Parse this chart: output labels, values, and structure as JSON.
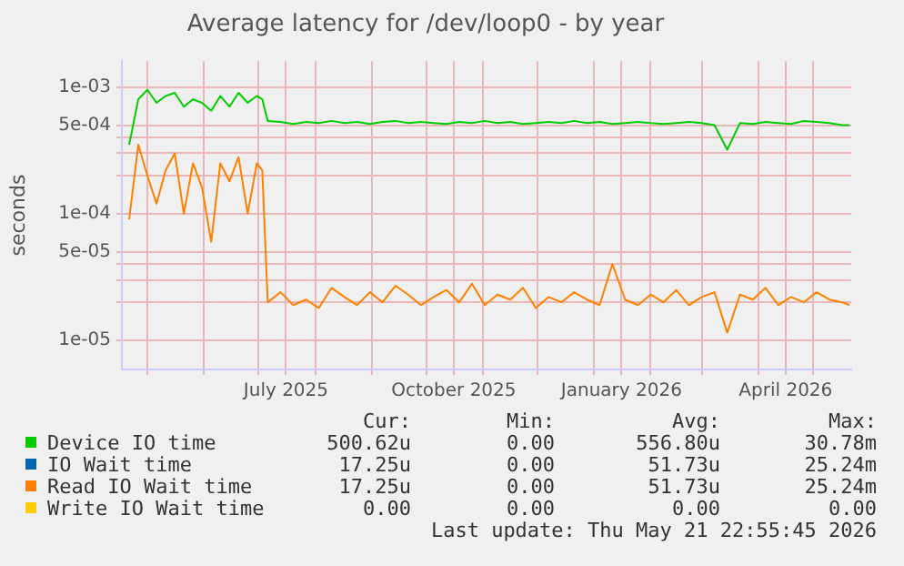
{
  "chart_data": {
    "type": "line",
    "title": "Average latency for /dev/loop0 - by year",
    "ylabel": "seconds",
    "x": [
      "2025-04-21",
      "2025-04-26",
      "2025-05-01",
      "2025-05-06",
      "2025-05-11",
      "2025-05-16",
      "2025-05-21",
      "2025-05-26",
      "2025-05-31",
      "2025-06-05",
      "2025-06-10",
      "2025-06-15",
      "2025-06-20",
      "2025-06-25",
      "2025-06-30",
      "2025-07-03",
      "2025-07-06",
      "2025-07-13",
      "2025-07-20",
      "2025-07-27",
      "2025-08-03",
      "2025-08-10",
      "2025-08-17",
      "2025-08-24",
      "2025-08-31",
      "2025-09-07",
      "2025-09-14",
      "2025-09-21",
      "2025-09-28",
      "2025-10-05",
      "2025-10-12",
      "2025-10-19",
      "2025-10-26",
      "2025-11-02",
      "2025-11-09",
      "2025-11-16",
      "2025-11-23",
      "2025-11-30",
      "2025-12-07",
      "2025-12-14",
      "2025-12-21",
      "2025-12-28",
      "2026-01-04",
      "2026-01-11",
      "2026-01-18",
      "2026-01-25",
      "2026-02-01",
      "2026-02-08",
      "2026-02-15",
      "2026-02-22",
      "2026-03-01",
      "2026-03-08",
      "2026-03-15",
      "2026-03-22",
      "2026-03-29",
      "2026-04-05",
      "2026-04-12",
      "2026-04-19",
      "2026-04-26",
      "2026-05-03",
      "2026-05-10",
      "2026-05-17",
      "2026-05-21"
    ],
    "series": [
      {
        "name": "Device IO time",
        "color": "#00cc00",
        "values": [
          0.00035,
          0.0008,
          0.00095,
          0.00075,
          0.00085,
          0.0009,
          0.0007,
          0.0008,
          0.00075,
          0.00065,
          0.00085,
          0.0007,
          0.0009,
          0.00075,
          0.00085,
          0.0008,
          0.00054,
          0.00053,
          0.00051,
          0.00053,
          0.00052,
          0.00054,
          0.00052,
          0.00053,
          0.00051,
          0.00053,
          0.00054,
          0.00052,
          0.00053,
          0.00052,
          0.00051,
          0.00053,
          0.00052,
          0.00054,
          0.00052,
          0.00053,
          0.00051,
          0.00052,
          0.00053,
          0.00052,
          0.00054,
          0.00052,
          0.00053,
          0.00051,
          0.00052,
          0.00053,
          0.00052,
          0.00051,
          0.00052,
          0.00053,
          0.00052,
          0.0005,
          0.00032,
          0.00052,
          0.00051,
          0.00053,
          0.00052,
          0.00051,
          0.00054,
          0.00053,
          0.00052,
          0.0005,
          0.0005
        ]
      },
      {
        "name": "IO Wait time",
        "color": "#0066b3",
        "values": [
          null,
          null,
          null,
          null,
          null,
          null,
          null,
          null,
          null,
          null,
          null,
          null,
          null,
          null,
          null,
          null,
          null,
          null,
          null,
          null,
          null,
          null,
          null,
          null,
          null,
          null,
          null,
          null,
          null,
          null,
          null,
          null,
          null,
          null,
          null,
          null,
          null,
          null,
          null,
          null,
          null,
          null,
          null,
          null,
          null,
          null,
          null,
          null,
          null,
          null,
          null,
          null,
          null,
          null,
          null,
          null,
          null,
          null,
          null,
          null,
          null,
          null,
          null
        ]
      },
      {
        "name": "Read IO Wait time",
        "color": "#ff8000",
        "values": [
          9e-05,
          0.00035,
          0.0002,
          0.00012,
          0.00022,
          0.0003,
          0.0001,
          0.00025,
          0.00016,
          6e-05,
          0.00025,
          0.00018,
          0.00028,
          0.0001,
          0.00025,
          0.00022,
          2e-05,
          2.4e-05,
          1.9e-05,
          2.1e-05,
          1.8e-05,
          2.6e-05,
          2.2e-05,
          1.9e-05,
          2.4e-05,
          2e-05,
          2.7e-05,
          2.3e-05,
          1.9e-05,
          2.2e-05,
          2.5e-05,
          2e-05,
          2.8e-05,
          1.9e-05,
          2.3e-05,
          2.1e-05,
          2.6e-05,
          1.8e-05,
          2.2e-05,
          2e-05,
          2.4e-05,
          2.1e-05,
          1.9e-05,
          4e-05,
          2.1e-05,
          1.9e-05,
          2.3e-05,
          2e-05,
          2.5e-05,
          1.9e-05,
          2.2e-05,
          2.4e-05,
          1.15e-05,
          2.3e-05,
          2.1e-05,
          2.6e-05,
          1.9e-05,
          2.2e-05,
          2e-05,
          2.4e-05,
          2.1e-05,
          2e-05,
          1.9e-05
        ]
      },
      {
        "name": "Write IO Wait time",
        "color": "#ffcc00",
        "values": [
          null,
          null,
          null,
          null,
          null,
          null,
          null,
          null,
          null,
          null,
          null,
          null,
          null,
          null,
          null,
          null,
          null,
          null,
          null,
          null,
          null,
          null,
          null,
          null,
          null,
          null,
          null,
          null,
          null,
          null,
          null,
          null,
          null,
          null,
          null,
          null,
          null,
          null,
          null,
          null,
          null,
          null,
          null,
          null,
          null,
          null,
          null,
          null,
          null,
          null,
          null,
          null,
          null,
          null,
          null,
          null,
          null,
          null,
          null,
          null,
          null,
          null,
          null
        ]
      }
    ],
    "log": "y",
    "ylim": [
      5.9e-06,
      0.0016
    ],
    "yticks": [
      {
        "value": 1e-05,
        "label": "1e-05"
      },
      {
        "value": 2e-05,
        "label": null
      },
      {
        "value": 3e-05,
        "label": null
      },
      {
        "value": 4e-05,
        "label": null
      },
      {
        "value": 5e-05,
        "label": "5e-05"
      },
      {
        "value": 0.0001,
        "label": "1e-04"
      },
      {
        "value": 0.0002,
        "label": null
      },
      {
        "value": 0.0003,
        "label": null
      },
      {
        "value": 0.0004,
        "label": null
      },
      {
        "value": 0.0005,
        "label": "5e-04"
      },
      {
        "value": 0.001,
        "label": "1e-03"
      }
    ],
    "xlim": [
      "2025-04-17",
      "2026-05-22"
    ],
    "xticks": [
      {
        "value": "2025-05-01",
        "label": null
      },
      {
        "value": "2025-06-01",
        "label": null
      },
      {
        "value": "2025-07-01",
        "label": null
      },
      {
        "value": "2025-07-16",
        "label": "July 2025"
      },
      {
        "value": "2025-08-01",
        "label": null
      },
      {
        "value": "2025-09-01",
        "label": null
      },
      {
        "value": "2025-10-01",
        "label": null
      },
      {
        "value": "2025-10-16",
        "label": "October 2025"
      },
      {
        "value": "2025-11-01",
        "label": null
      },
      {
        "value": "2025-12-01",
        "label": null
      },
      {
        "value": "2026-01-01",
        "label": null
      },
      {
        "value": "2026-01-16",
        "label": "January 2026"
      },
      {
        "value": "2026-02-01",
        "label": null
      },
      {
        "value": "2026-03-01",
        "label": null
      },
      {
        "value": "2026-04-01",
        "label": null
      },
      {
        "value": "2026-04-16",
        "label": "April 2026"
      },
      {
        "value": "2026-05-01",
        "label": null
      }
    ],
    "grid": true,
    "legend": "bottom",
    "marker": "none",
    "line_style": "solid",
    "annotations": [
      "Cur:",
      "Min:",
      "Avg:",
      "Max:",
      "500.62u",
      "0.00",
      "556.80u",
      "30.78m",
      "17.25u",
      "0.00",
      "51.73u",
      "25.24m",
      "17.25u",
      "0.00",
      "51.73u",
      "25.24m",
      "0.00",
      "0.00",
      "0.00",
      "0.00",
      "Last update: Thu May 21 22:55:45 2026"
    ]
  }
}
